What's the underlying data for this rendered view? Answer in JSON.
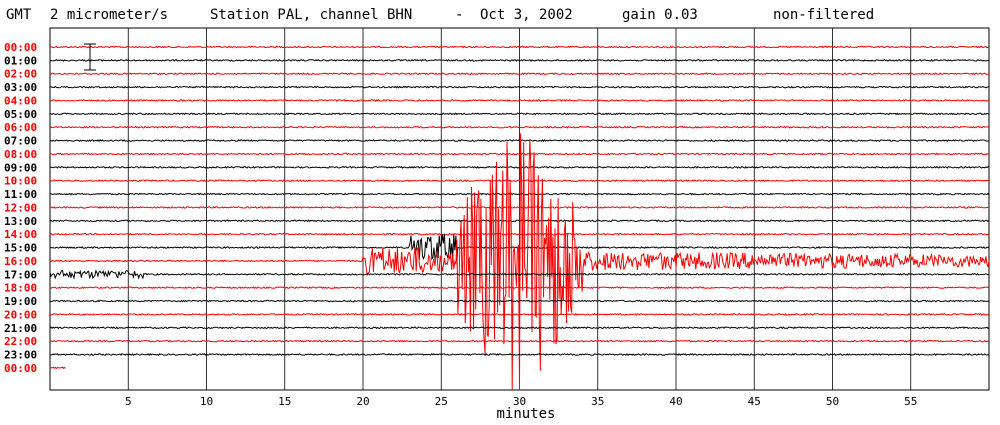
{
  "header": {
    "timezone": "GMT",
    "scale": "2 micrometer/s",
    "station": "Station PAL, channel BHN",
    "separator": "-",
    "date": "Oct  3, 2002",
    "gain": "gain 0.03",
    "filter": "non-filtered"
  },
  "colors": {
    "red": "#ff0000",
    "black": "#000000",
    "background": "#ffffff"
  },
  "chart_data": {
    "type": "line",
    "subtype": "helicorder",
    "xlabel": "minutes",
    "xlim": [
      0,
      60
    ],
    "x_ticks": [
      5,
      10,
      15,
      20,
      25,
      30,
      35,
      40,
      45,
      50,
      55
    ],
    "hour_labels": [
      "00:00",
      "01:00",
      "02:00",
      "03:00",
      "04:00",
      "05:00",
      "06:00",
      "07:00",
      "08:00",
      "09:00",
      "10:00",
      "11:00",
      "12:00",
      "13:00",
      "14:00",
      "15:00",
      "16:00",
      "17:00",
      "18:00",
      "19:00",
      "20:00",
      "21:00",
      "22:00",
      "23:00",
      "00:00"
    ],
    "trace_colors": [
      "red",
      "black",
      "red",
      "black",
      "red",
      "black",
      "red",
      "black",
      "red",
      "black",
      "red",
      "black",
      "red",
      "black",
      "red",
      "black",
      "red",
      "black",
      "red",
      "black",
      "red",
      "black",
      "red",
      "black",
      "red"
    ],
    "vertical_grid": true,
    "events": [
      {
        "hour_index": 17,
        "start_minute": 0,
        "end_minute": 6,
        "level": "low"
      },
      {
        "hour_index": 16,
        "start_minute": 20,
        "end_minute": 24,
        "level": "moderate"
      },
      {
        "hour_index": 15,
        "start_minute": 23,
        "end_minute": 26,
        "level": "moderate"
      },
      {
        "hour_index": 16,
        "start_minute": 24,
        "end_minute": 60,
        "level": "coda"
      },
      {
        "hour_index": 16,
        "start_minute": 26,
        "end_minute": 34,
        "level": "main-shock"
      }
    ]
  }
}
